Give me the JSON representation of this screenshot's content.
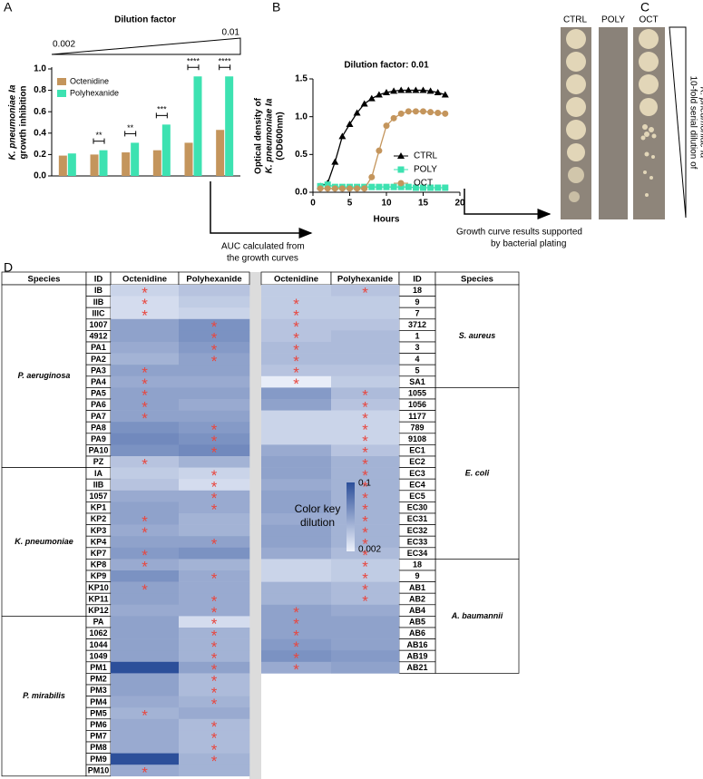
{
  "chart_data": [
    {
      "type": "bar",
      "panel": "A",
      "title": "Dilution factor",
      "wedge_labels": [
        "0.002",
        "0.01"
      ],
      "ylabel": [
        "K. pneumoniae Ia",
        "growth inhibition"
      ],
      "categories": [
        null,
        null,
        null,
        null,
        null,
        null
      ],
      "series": [
        {
          "name": "Octenidine",
          "color": "#c4955c",
          "values": [
            0.19,
            0.2,
            0.22,
            0.24,
            0.31,
            0.43
          ]
        },
        {
          "name": "Polyhexanide",
          "color": "#3de2b1",
          "values": [
            0.21,
            0.24,
            0.31,
            0.48,
            0.93,
            0.93
          ]
        }
      ],
      "significance": [
        null,
        "**",
        "**",
        "***",
        "****",
        "****"
      ],
      "ylim": [
        0,
        1
      ],
      "yticks": [
        {
          "value": 0,
          "label": "0.0"
        },
        0.2,
        0.4,
        0.6,
        0.8,
        {
          "value": 1,
          "label": "1.0"
        }
      ]
    },
    {
      "type": "line",
      "panel": "B",
      "title": "Dilution factor: 0.01",
      "ylabel": [
        "Optical density of",
        "K. pneumoniae Ia",
        "(OD600nm)"
      ],
      "xlabel": "Hours",
      "x": [
        1,
        2,
        3,
        4,
        5,
        6,
        7,
        8,
        9,
        10,
        11,
        12,
        13,
        14,
        15,
        16,
        17,
        18
      ],
      "series": [
        {
          "name": "CTRL",
          "color": "#000000",
          "marker": "triangle",
          "values": [
            0.08,
            0.12,
            0.4,
            0.74,
            0.9,
            1.05,
            1.17,
            1.24,
            1.29,
            1.32,
            1.34,
            1.35,
            1.35,
            1.35,
            1.35,
            1.34,
            1.32,
            1.29
          ]
        },
        {
          "name": "POLY",
          "color": "#3de2b1",
          "marker": "square",
          "values": [
            0.08,
            0.1,
            0.07,
            0.07,
            0.07,
            0.07,
            0.07,
            0.07,
            0.07,
            0.07,
            0.07,
            0.07,
            0.07,
            0.06,
            0.06,
            0.06,
            0.06,
            0.06
          ]
        },
        {
          "name": "OCT",
          "color": "#c4955c",
          "marker": "circle",
          "values": [
            0.05,
            0.05,
            0.05,
            0.05,
            0.05,
            0.05,
            0.05,
            0.2,
            0.55,
            0.88,
            0.98,
            1.04,
            1.07,
            1.07,
            1.07,
            1.06,
            1.05,
            1.04
          ]
        }
      ],
      "xlim": [
        0,
        20
      ],
      "xticks": [
        0,
        5,
        10,
        15,
        20
      ],
      "ylim": [
        0,
        1.5
      ],
      "yticks": [
        {
          "value": 0,
          "label": "0.0"
        },
        0.5,
        {
          "value": 1,
          "label": "1.0"
        },
        1.5
      ]
    }
  ],
  "flow_notes": [
    [
      "AUC calculated from",
      "the growth curves"
    ],
    [
      "Growth curve results supported",
      "by bacterial plating"
    ]
  ],
  "panel_c": {
    "label": "C",
    "columns": [
      "CTRL",
      "POLY",
      "OCT"
    ],
    "side_label": [
      "10-fold serial dilution of",
      "K. pneumoniae Ia"
    ]
  },
  "panel_d": {
    "label": "D",
    "star_symbol": "*",
    "color_key": {
      "title": [
        "Color key",
        "dilution"
      ],
      "ticks": [
        0.1,
        0.002
      ],
      "colors": [
        "#2c4f9a",
        "#eef2fb"
      ]
    },
    "left": {
      "headers": [
        "Species",
        "ID",
        "Octenidine",
        "Polyhexanide"
      ],
      "groups": [
        {
          "species": "P. aeruginosa",
          "ids": [
            "IB",
            "IIB",
            "IIIC",
            "1007",
            "4912",
            "PA1",
            "PA2",
            "PA3",
            "PA4",
            "PA5",
            "PA6",
            "PA7",
            "PA8",
            "PA9",
            "PA10",
            "PZ"
          ],
          "octenidine": [
            0.02,
            0.015,
            0.015,
            0.05,
            0.05,
            0.045,
            0.04,
            0.05,
            0.045,
            0.05,
            0.05,
            0.05,
            0.06,
            0.065,
            0.06,
            0.03
          ],
          "polyhexanide": [
            0.03,
            0.025,
            0.02,
            0.06,
            0.06,
            0.055,
            0.05,
            0.05,
            0.045,
            0.05,
            0.045,
            0.05,
            0.055,
            0.06,
            0.065,
            0.04
          ],
          "star_column": [
            0,
            0,
            0,
            1,
            1,
            1,
            1,
            0,
            0,
            0,
            0,
            0,
            1,
            1,
            1,
            0
          ]
        },
        {
          "species": "K. pneumoniae",
          "ids": [
            "IA",
            "IIB",
            "1057",
            "KP1",
            "KP2",
            "KP3",
            "KP4",
            "KP7",
            "KP8",
            "KP9",
            "KP10",
            "KP11",
            "KP12"
          ],
          "octenidine": [
            0.025,
            0.03,
            0.045,
            0.05,
            0.05,
            0.045,
            0.05,
            0.055,
            0.045,
            0.06,
            0.05,
            0.05,
            0.045
          ],
          "polyhexanide": [
            0.02,
            0.015,
            0.045,
            0.045,
            0.04,
            0.04,
            0.05,
            0.06,
            0.04,
            0.045,
            0.045,
            0.045,
            0.045
          ],
          "star_column": [
            1,
            1,
            1,
            1,
            0,
            0,
            1,
            0,
            0,
            1,
            0,
            1,
            1
          ]
        },
        {
          "species": "P. mirabilis",
          "ids": [
            "PA",
            "1062",
            "1044",
            "1049",
            "PM1",
            "PM2",
            "PM3",
            "PM4",
            "PM5",
            "PM6",
            "PM7",
            "PM8",
            "PM9",
            "PM10"
          ],
          "octenidine": [
            0.05,
            0.05,
            0.05,
            0.05,
            0.1,
            0.05,
            0.05,
            0.045,
            0.04,
            0.045,
            0.045,
            0.045,
            0.1,
            0.045
          ],
          "polyhexanide": [
            0.015,
            0.04,
            0.04,
            0.04,
            0.05,
            0.035,
            0.035,
            0.04,
            0.045,
            0.035,
            0.035,
            0.035,
            0.04,
            0.04
          ],
          "star_column": [
            1,
            1,
            1,
            1,
            1,
            1,
            1,
            1,
            0,
            1,
            1,
            1,
            1,
            0
          ]
        }
      ]
    },
    "right": {
      "headers": [
        "Octenidine",
        "Polyhexanide",
        "ID",
        "Species"
      ],
      "groups": [
        {
          "species": "S. aureus",
          "ids": [
            "18",
            "9",
            "7",
            "3712",
            "1",
            "3",
            "4",
            "5",
            "SA1"
          ],
          "octenidine": [
            0.025,
            0.025,
            0.025,
            0.03,
            0.03,
            0.035,
            0.035,
            0.03,
            0.005
          ],
          "polyhexanide": [
            0.03,
            0.025,
            0.025,
            0.03,
            0.035,
            0.035,
            0.035,
            0.03,
            0.025
          ],
          "star_column": [
            1,
            0,
            0,
            0,
            0,
            0,
            0,
            0,
            0
          ]
        },
        {
          "species": "E. coli",
          "ids": [
            "1055",
            "1056",
            "1177",
            "789",
            "9108",
            "EC1",
            "EC2",
            "EC3",
            "EC4",
            "EC5",
            "EC30",
            "EC31",
            "EC32",
            "EC33",
            "EC34"
          ],
          "octenidine": [
            0.055,
            0.05,
            0.02,
            0.02,
            0.02,
            0.045,
            0.05,
            0.05,
            0.045,
            0.05,
            0.05,
            0.045,
            0.05,
            0.05,
            0.045
          ],
          "polyhexanide": [
            0.035,
            0.03,
            0.02,
            0.02,
            0.02,
            0.03,
            0.04,
            0.04,
            0.04,
            0.04,
            0.04,
            0.04,
            0.04,
            0.04,
            0.035
          ],
          "star_column": [
            1,
            1,
            1,
            1,
            1,
            1,
            1,
            1,
            1,
            1,
            1,
            1,
            1,
            1,
            1
          ]
        },
        {
          "species": "A. baumannii",
          "ids": [
            "18",
            "9",
            "AB1",
            "AB2",
            "AB4",
            "AB5",
            "AB6",
            "AB16",
            "AB19",
            "AB21"
          ],
          "octenidine": [
            0.02,
            0.02,
            0.04,
            0.04,
            0.05,
            0.05,
            0.05,
            0.055,
            0.06,
            0.045
          ],
          "polyhexanide": [
            0.025,
            0.025,
            0.035,
            0.035,
            0.045,
            0.05,
            0.05,
            0.05,
            0.055,
            0.05
          ],
          "star_column": [
            1,
            1,
            1,
            1,
            0,
            0,
            0,
            0,
            0,
            0
          ]
        }
      ]
    }
  }
}
